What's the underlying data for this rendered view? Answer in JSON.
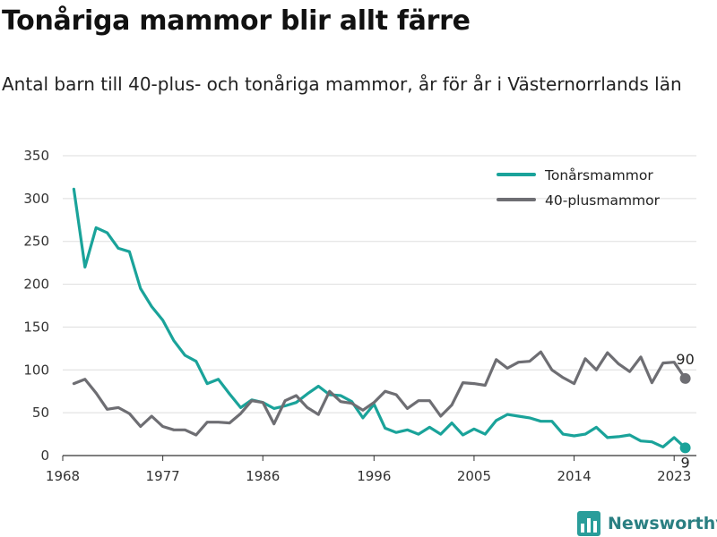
{
  "title": "Tonåriga mammor blir allt färre",
  "subtitle": "Antal barn till 40-plus- och tonåriga mammor, år för år i Västernorrlands län",
  "brand": {
    "name": "Newsworthy",
    "icon": "bar-chart-logo-icon",
    "color": "#2a9d9a"
  },
  "chart_data": {
    "type": "line",
    "x": [
      1969,
      1970,
      1971,
      1972,
      1973,
      1974,
      1975,
      1976,
      1977,
      1978,
      1979,
      1980,
      1981,
      1982,
      1983,
      1984,
      1985,
      1986,
      1987,
      1988,
      1989,
      1990,
      1991,
      1992,
      1993,
      1994,
      1995,
      1996,
      1997,
      1998,
      1999,
      2000,
      2001,
      2002,
      2003,
      2004,
      2005,
      2006,
      2007,
      2008,
      2009,
      2010,
      2011,
      2012,
      2013,
      2014,
      2015,
      2016,
      2017,
      2018,
      2019,
      2020,
      2021,
      2022,
      2023,
      2024
    ],
    "series": [
      {
        "name": "Tonårsmammor",
        "color": "#1aa39a",
        "values": [
          311,
          220,
          266,
          260,
          242,
          238,
          195,
          174,
          158,
          134,
          117,
          110,
          84,
          89,
          72,
          56,
          65,
          62,
          55,
          58,
          62,
          72,
          81,
          71,
          70,
          63,
          44,
          60,
          32,
          27,
          30,
          25,
          33,
          25,
          38,
          24,
          31,
          25,
          41,
          48,
          46,
          44,
          40,
          40,
          25,
          23,
          25,
          33,
          21,
          22,
          24,
          17,
          16,
          10,
          21,
          9
        ],
        "end_label": "9"
      },
      {
        "name": "40-plusmammor",
        "color": "#6e6e73",
        "values": [
          84,
          89,
          73,
          54,
          56,
          49,
          34,
          46,
          34,
          30,
          30,
          24,
          39,
          39,
          38,
          49,
          64,
          62,
          37,
          64,
          70,
          56,
          48,
          75,
          63,
          61,
          53,
          62,
          75,
          71,
          55,
          64,
          64,
          46,
          59,
          85,
          84,
          82,
          112,
          102,
          109,
          110,
          121,
          100,
          91,
          84,
          113,
          100,
          120,
          107,
          98,
          115,
          85,
          108,
          109,
          90
        ],
        "end_label": "90"
      }
    ],
    "x_ticks": [
      "1968",
      "1977",
      "1986",
      "1996",
      "2005",
      "2014",
      "2023"
    ],
    "y_ticks": [
      "0",
      "50",
      "100",
      "150",
      "200",
      "250",
      "300",
      "350"
    ],
    "xlim": [
      1968,
      2025
    ],
    "ylim": [
      0,
      350
    ],
    "grid": "horizontal",
    "legend_position": "top-right",
    "xlabel": "",
    "ylabel": ""
  }
}
